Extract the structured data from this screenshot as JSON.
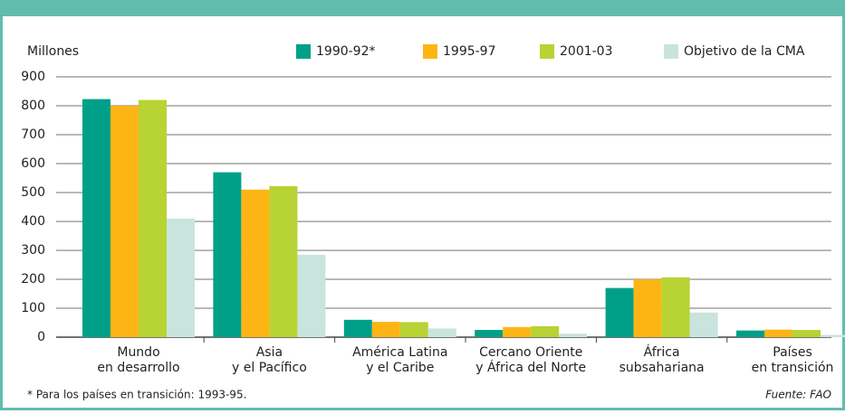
{
  "chart_data": {
    "type": "bar",
    "y_label": "Millones",
    "categories": [
      [
        "Mundo",
        "en desarrollo"
      ],
      [
        "Asia",
        "y el Pacífico"
      ],
      [
        "América Latina",
        "y el Caribe"
      ],
      [
        "Cercano Oriente",
        "y África del Norte"
      ],
      [
        "África",
        "subsahariana"
      ],
      [
        "Países",
        "en transición"
      ]
    ],
    "series": [
      {
        "name": "1990-92*",
        "color": "#00a088",
        "values": [
          823,
          570,
          60,
          25,
          170,
          23
        ]
      },
      {
        "name": "1995-97",
        "color": "#fdb515",
        "values": [
          800,
          510,
          53,
          35,
          200,
          26
        ]
      },
      {
        "name": "2001-03",
        "color": "#b7d334",
        "values": [
          820,
          522,
          52,
          38,
          207,
          25
        ]
      },
      {
        "name": "Objetivo de la CMA",
        "color": "#c9e4dd",
        "values": [
          410,
          285,
          30,
          12,
          85,
          8
        ]
      }
    ],
    "ylim": [
      0,
      900
    ],
    "yticks": [
      0,
      100,
      200,
      300,
      400,
      500,
      600,
      700,
      800,
      900
    ],
    "grid": true,
    "footnote": "* Para los países en transición: 1993-95.",
    "source": "Fuente: FAO"
  }
}
